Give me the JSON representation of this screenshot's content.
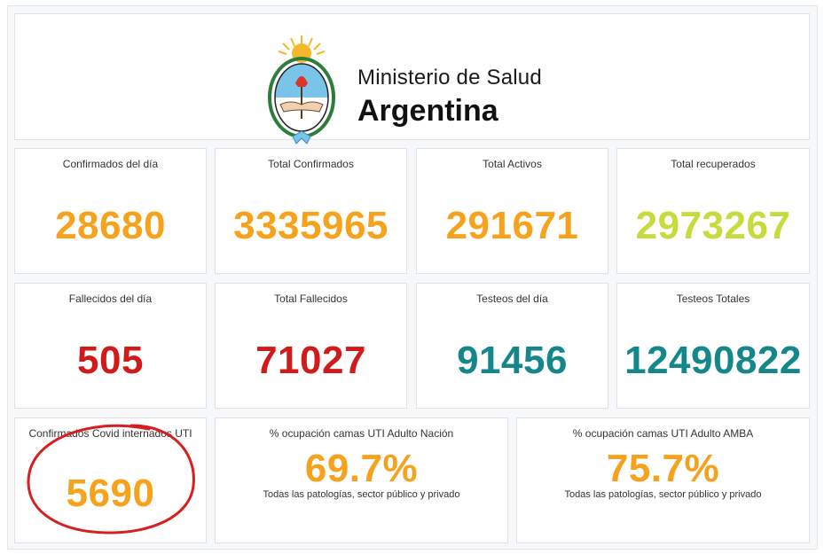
{
  "header": {
    "line1": "Ministerio de Salud",
    "line2": "Argentina"
  },
  "tiles_row1": [
    {
      "title": "Confirmados del día",
      "value": "28680",
      "color": "#f7a21c"
    },
    {
      "title": "Total Confirmados",
      "value": "3335965",
      "color": "#f7a21c"
    },
    {
      "title": "Total Activos",
      "value": "291671",
      "color": "#f7a21c"
    },
    {
      "title": "Total recuperados",
      "value": "2973267",
      "color": "#c6dc3c"
    }
  ],
  "tiles_row2": [
    {
      "title": "Fallecidos del día",
      "value": "505",
      "color": "#d11a1a"
    },
    {
      "title": "Total Fallecidos",
      "value": "71027",
      "color": "#d11a1a"
    },
    {
      "title": "Testeos del día",
      "value": "91456",
      "color": "#13878a"
    },
    {
      "title": "Testeos Totales",
      "value": "12490822",
      "color": "#13878a"
    }
  ],
  "tiles_row3": [
    {
      "title": "Confirmados Covid internados UTI",
      "value": "5690",
      "color": "#f7a21c"
    },
    {
      "title": "% ocupación camas UTI Adulto Nación",
      "value": "69.7%",
      "sub": "Todas las patologías, sector público y privado",
      "color": "#f7a21c"
    },
    {
      "title": "% ocupación camas UTI Adulto AMBA",
      "value": "75.7%",
      "sub": "Todas las patologías, sector público y privado",
      "color": "#f7a21c"
    }
  ],
  "colors": {
    "annotation_circle": "#d81e1e",
    "seal_blue": "#7ac4ea",
    "seal_sun": "#f5b82a"
  }
}
